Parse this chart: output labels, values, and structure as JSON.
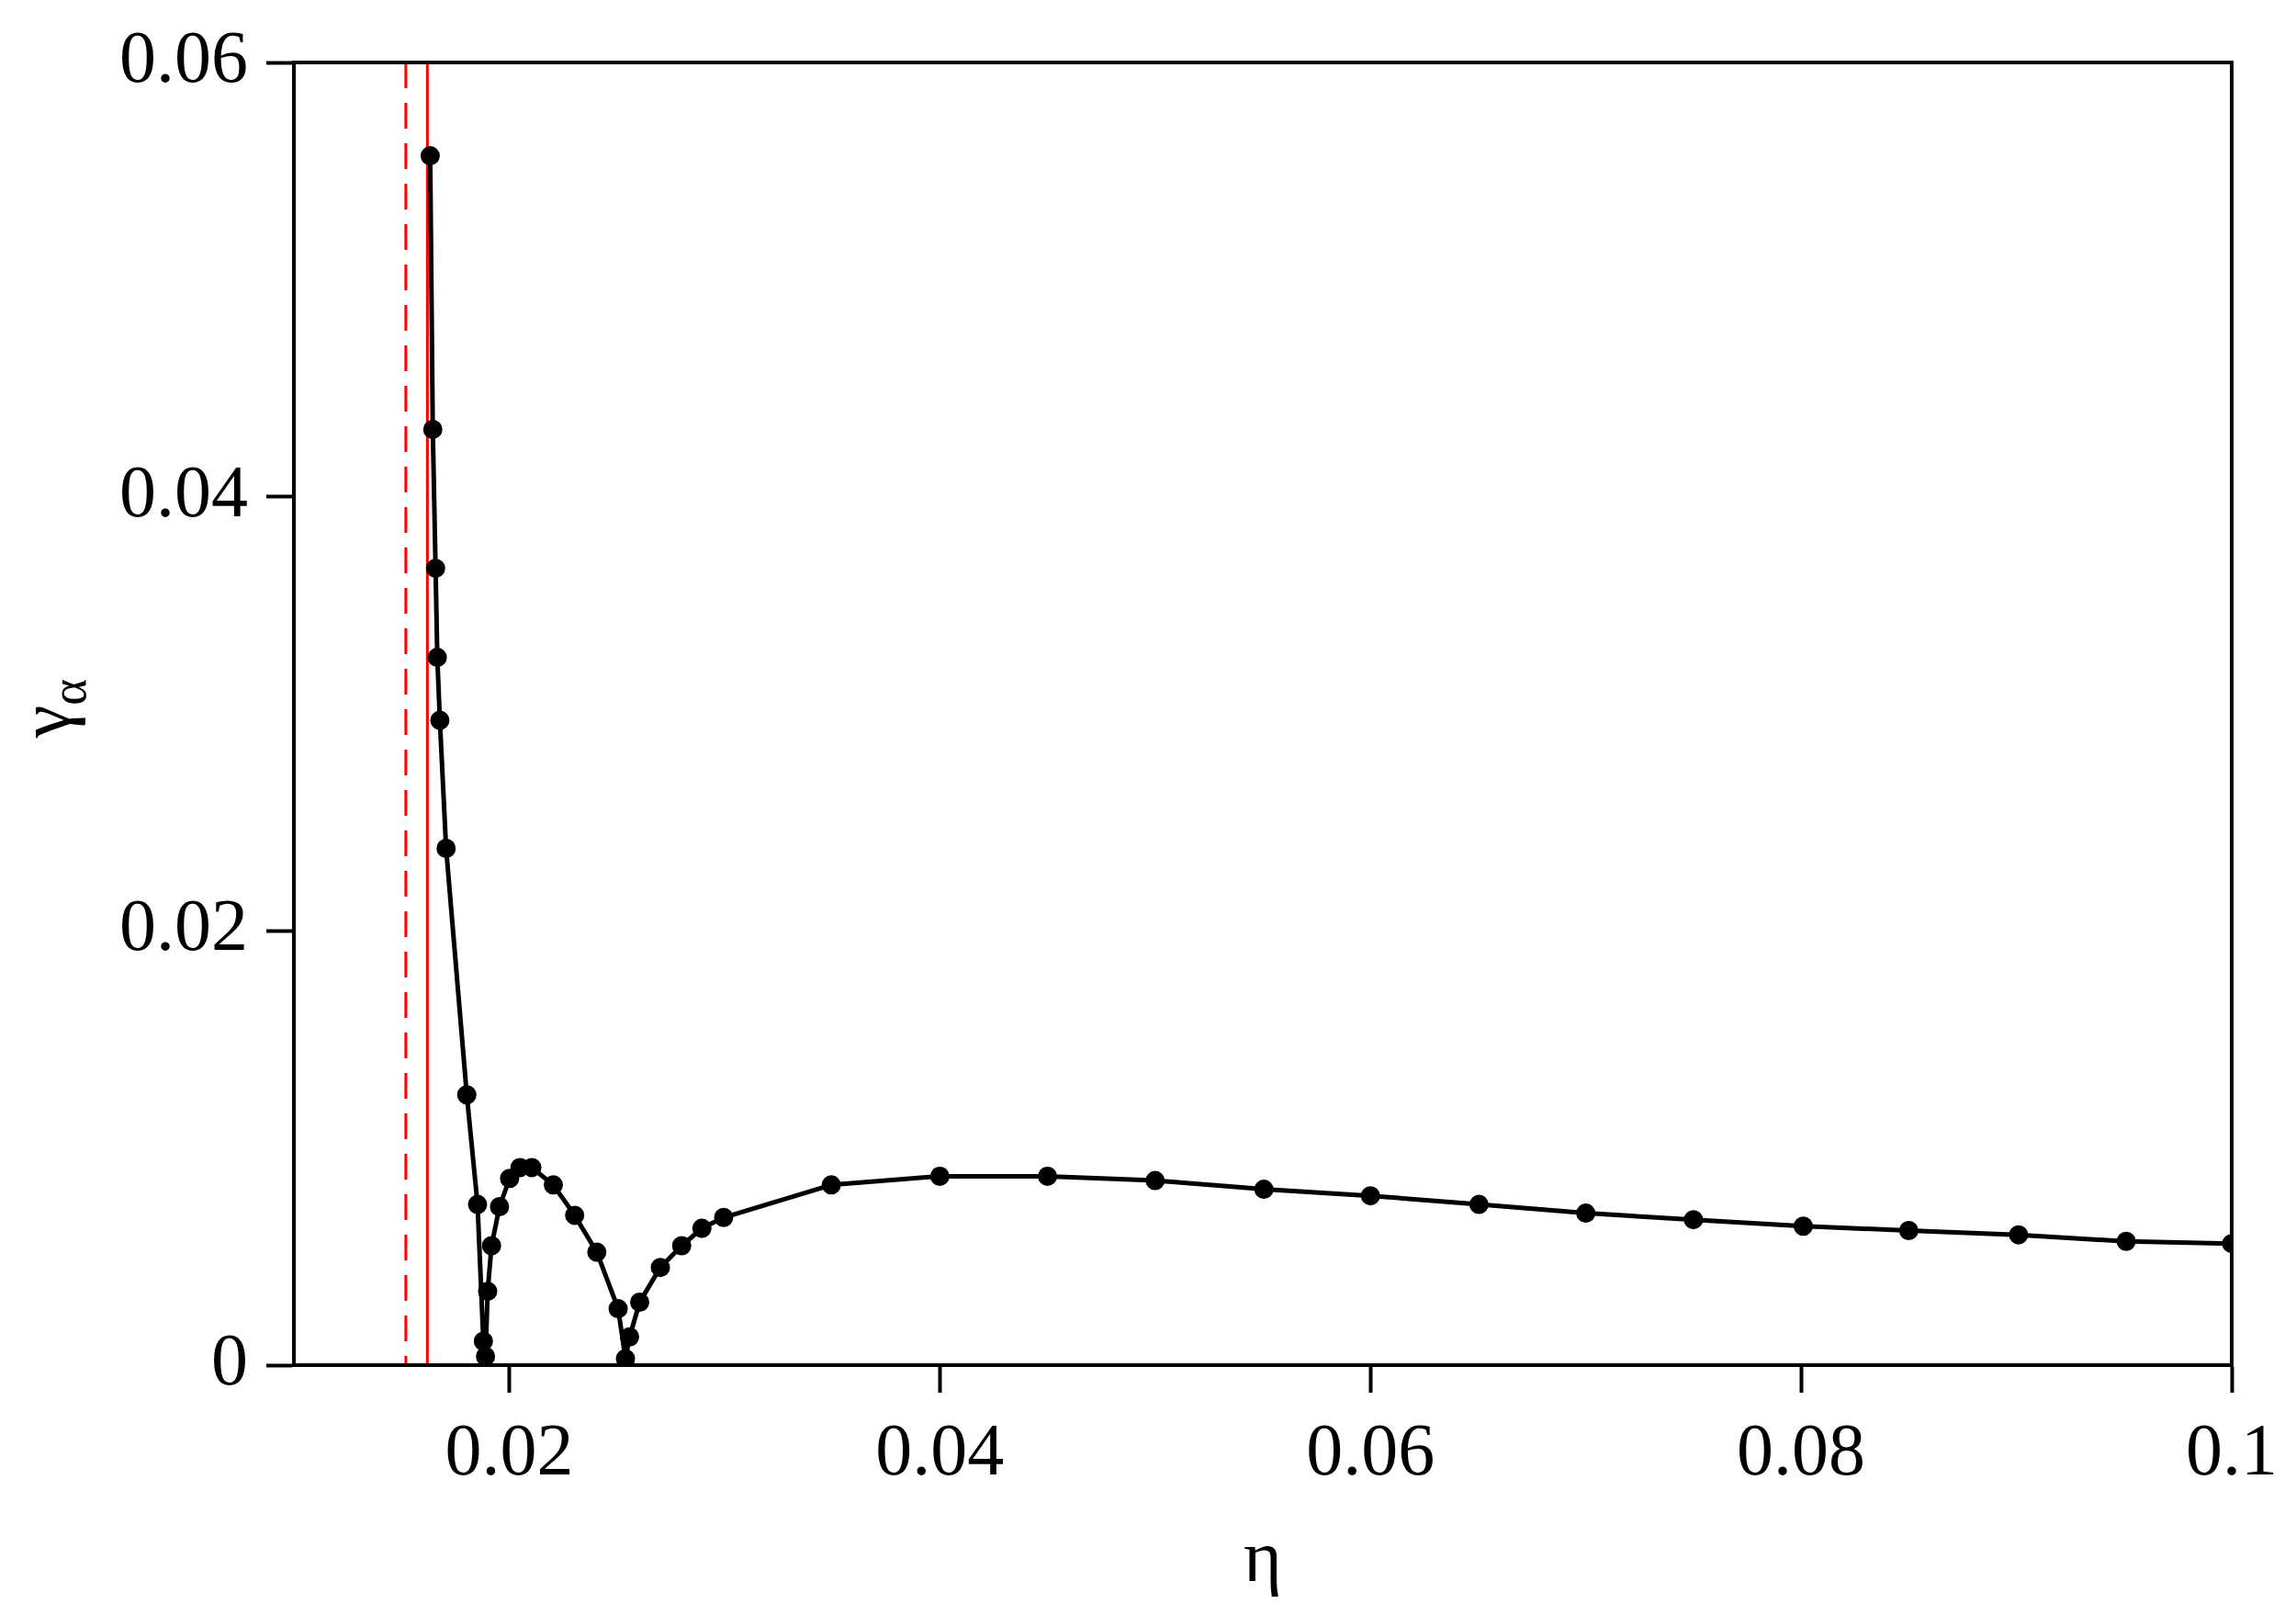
{
  "chart_data": {
    "type": "line",
    "xlabel": "η",
    "ylabel": "γ$_{α}$",
    "xlim": [
      0.01,
      0.1
    ],
    "ylim": [
      0,
      0.06
    ],
    "xticks": [
      0.02,
      0.04,
      0.06,
      0.08,
      0.1
    ],
    "yticks": [
      0,
      0.02,
      0.04,
      0.06
    ],
    "grid": false,
    "legend": false,
    "marker": "circle",
    "line_style": "solid",
    "series": [
      {
        "color": "#000000",
        "x": [
          0.01633,
          0.01645,
          0.01658,
          0.01666,
          0.01678,
          0.01707,
          0.01803,
          0.01853,
          0.0188,
          0.0189,
          0.019,
          0.01918,
          0.01955,
          0.02002,
          0.0205,
          0.02105,
          0.02205,
          0.02304,
          0.02407,
          0.02506,
          0.0254,
          0.02559,
          0.02606,
          0.02702,
          0.02801,
          0.02895,
          0.02996,
          0.03496,
          0.04,
          0.045,
          0.05,
          0.05505,
          0.06,
          0.06504,
          0.07,
          0.075,
          0.0801,
          0.085,
          0.0901,
          0.0951,
          0.1
        ],
        "values": [
          0.0557,
          0.0431,
          0.0367,
          0.0326,
          0.0297,
          0.0238,
          0.01245,
          0.0074,
          0.0011,
          0.0004,
          0.0034,
          0.0055,
          0.0073,
          0.0086,
          0.0091,
          0.0091,
          0.0083,
          0.0069,
          0.0052,
          0.0026,
          0.0003,
          0.0013,
          0.0029,
          0.0045,
          0.0055,
          0.0063,
          0.0068,
          0.0083,
          0.0087,
          0.0087,
          0.0085,
          0.0081,
          0.0078,
          0.0074,
          0.007,
          0.0067,
          0.0064,
          0.0062,
          0.006,
          0.0057,
          0.0056
        ]
      }
    ],
    "ref_lines": [
      {
        "axis": "x",
        "value": 0.0152,
        "color": "#ff0000",
        "line_style": "dashed"
      },
      {
        "axis": "x",
        "value": 0.0162,
        "color": "#ff0000",
        "line_style": "solid"
      }
    ]
  }
}
